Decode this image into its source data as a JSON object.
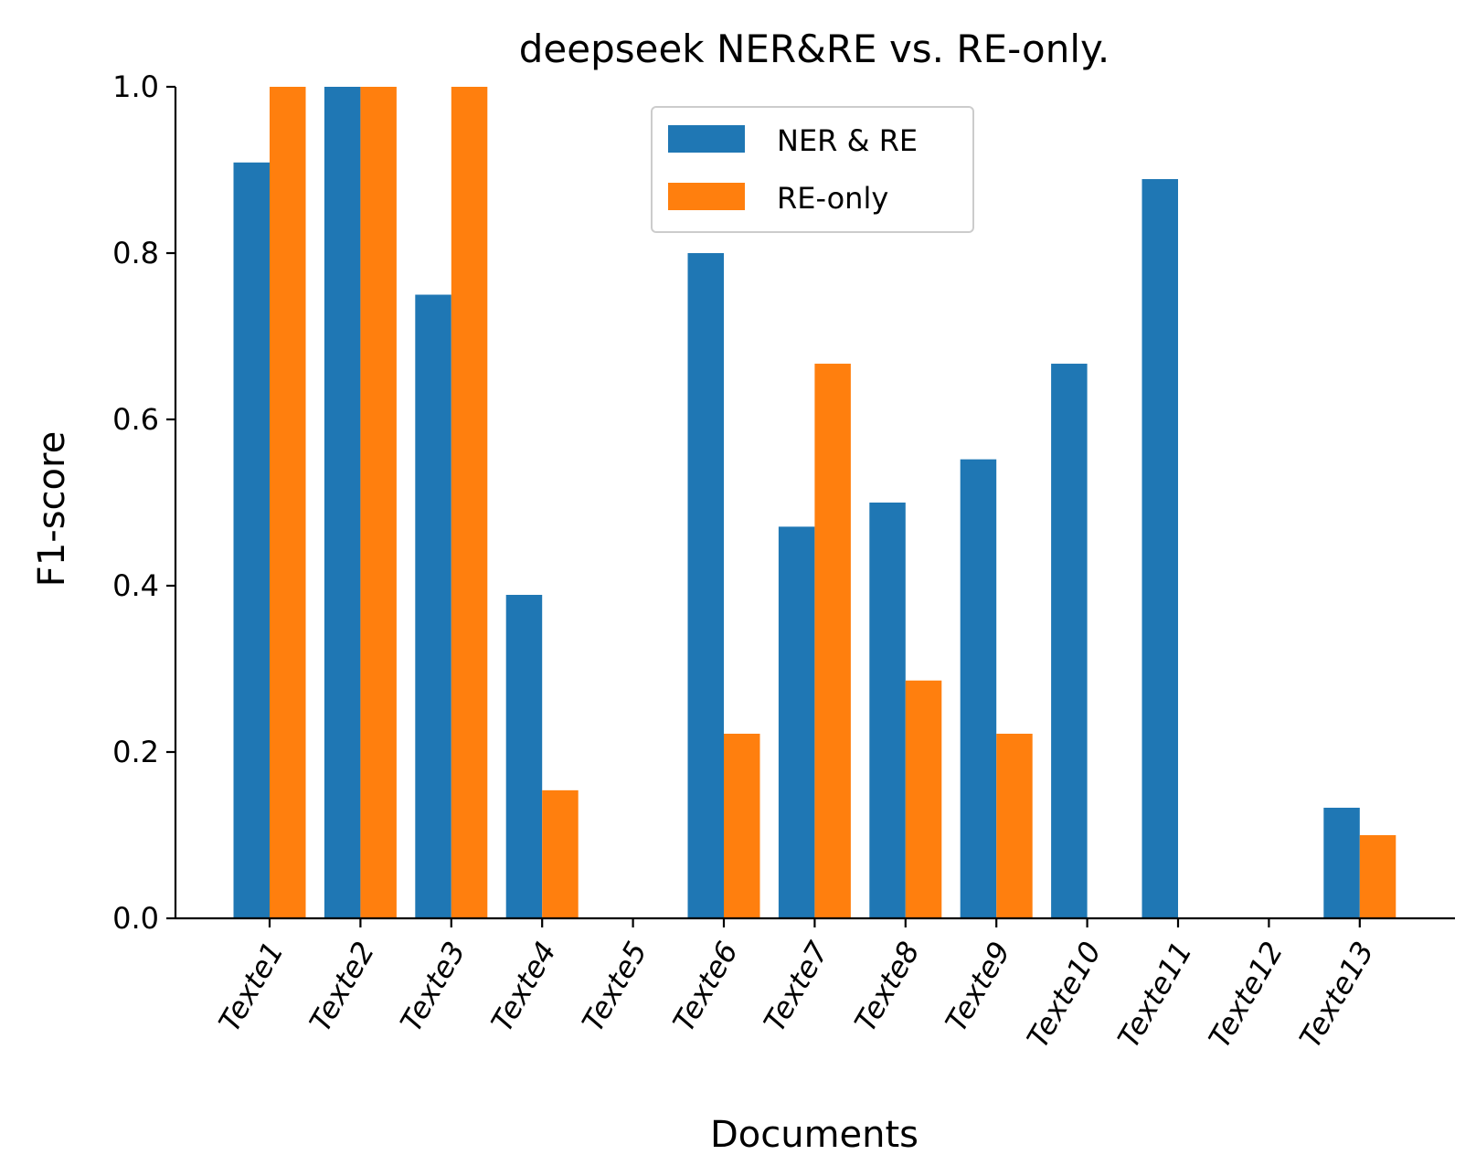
{
  "chart_data": {
    "type": "bar",
    "title": "deepseek NER&RE vs. RE-only.",
    "xlabel": "Documents",
    "ylabel": "F1-score",
    "ylim": [
      0,
      1.0
    ],
    "yticks": [
      "0.0",
      "0.2",
      "0.4",
      "0.6",
      "0.8",
      "1.0"
    ],
    "categories": [
      "Texte1",
      "Texte2",
      "Texte3",
      "Texte4",
      "Texte5",
      "Texte6",
      "Texte7",
      "Texte8",
      "Texte9",
      "Texte10",
      "Texte11",
      "Texte12",
      "Texte13"
    ],
    "series": [
      {
        "name": "NER & RE",
        "color": "#1f77b4",
        "values": [
          0.909,
          1.0,
          0.75,
          0.389,
          0.0,
          0.8,
          0.471,
          0.5,
          0.552,
          0.667,
          0.889,
          0.0,
          0.133
        ]
      },
      {
        "name": "RE-only",
        "color": "#ff7f0e",
        "values": [
          1.0,
          1.0,
          1.0,
          0.154,
          0.0,
          0.222,
          0.667,
          0.286,
          0.222,
          0.0,
          0.0,
          0.0,
          0.1
        ]
      }
    ],
    "legend_position": "upper center",
    "grid": false
  }
}
